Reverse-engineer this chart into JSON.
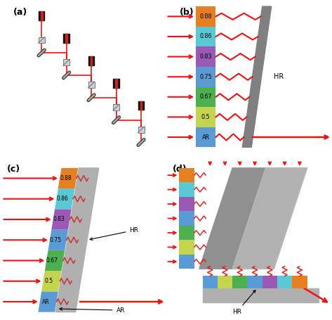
{
  "panel_labels": [
    "(a)",
    "(b)",
    "(c)",
    "(d)"
  ],
  "band_colors": [
    "#5B9BD5",
    "#C5D44F",
    "#4CAF50",
    "#5B9BD5",
    "#9B59B6",
    "#5BC8D5",
    "#E67E22"
  ],
  "wavelength_labels": [
    "AR",
    "0.5",
    "0.67",
    "0.75",
    "0.83",
    "0.86",
    "0.88"
  ],
  "red": "#EE1111",
  "gray_hr": "#808080",
  "gray_slab": "#B0B0B0",
  "gray_light": "#C8C8C8"
}
